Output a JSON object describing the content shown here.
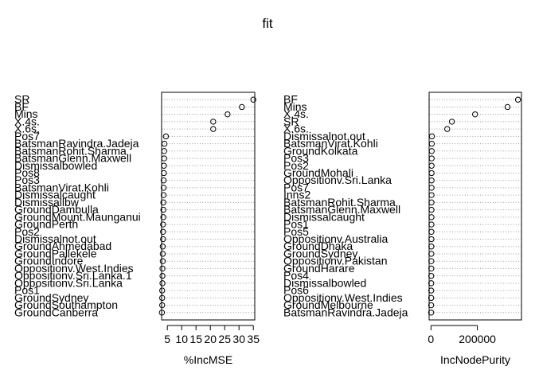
{
  "title": "fit",
  "chart_data": [
    {
      "type": "scatter",
      "xlabel": "%IncMSE",
      "xlim": [
        3,
        35.5
      ],
      "xticks": [
        5,
        10,
        15,
        20,
        25,
        30,
        35
      ],
      "grid": "dotted horizontal guide per category",
      "categories": [
        "SR",
        "BF",
        "Mins",
        "X.4s.",
        "X.6s.",
        "Pos7",
        "BatsmanRavindra.Jadeja",
        "BatsmanRohit.Sharma",
        "BatsmanGlenn.Maxwell",
        "Dismissalbowled",
        "Pos8",
        "Pos3",
        "BatsmanVirat.Kohli",
        "Dismissalcaught",
        "Dismissallbw",
        "GroundDambulla",
        "GroundMount.Maunganui",
        "GroundPerth",
        "Pos2",
        "Dismissalnot.out",
        "GroundAhmedabad",
        "GroundPallekele",
        "GroundIndore",
        "Oppositionv.West.Indies",
        "Oppositionv.Sri.Lanka.1",
        "Oppositionv.Sri.Lanka",
        "Pos1",
        "GroundSydney",
        "GroundSouthampton",
        "GroundCanberra"
      ],
      "values": [
        35,
        31,
        26,
        21,
        21,
        4.5,
        4,
        3.9,
        3.9,
        3.8,
        3.8,
        3.7,
        3.7,
        3.7,
        3.6,
        3.6,
        3.6,
        3.5,
        3.5,
        3.5,
        3.4,
        3.4,
        3.4,
        3.3,
        3.3,
        3.3,
        3.2,
        3.2,
        3.2,
        3.1
      ]
    },
    {
      "type": "scatter",
      "xlabel": "IncNodePurity",
      "xlim": [
        -8000,
        390000
      ],
      "xticks": [
        0,
        200000
      ],
      "grid": "dotted horizontal guide per category",
      "categories": [
        "BF",
        "Mins",
        "X.4s.",
        "SR",
        "X.6s.",
        "Dismissalnot.out",
        "BatsmanVirat.Kohli",
        "GroundKolkata",
        "Pos3",
        "Pos2",
        "GroundMohali",
        "Oppositionv.Sri.Lanka",
        "Pos7",
        "Inns2",
        "BatsmanRohit.Sharma",
        "BatsmanGlenn.Maxwell",
        "Dismissalcaught",
        "Pos1",
        "Pos5",
        "Oppositionv.Australia",
        "GroundDhaka",
        "GroundSydney",
        "Oppositionv.Pakistan",
        "GroundHarare",
        "Pos4",
        "Dismissalbowled",
        "Pos6",
        "Oppositionv.West.Indies",
        "GroundMelbourne",
        "BatsmanRavindra.Jadeja"
      ],
      "values": [
        375000,
        330000,
        190000,
        90000,
        70000,
        4000,
        3500,
        3200,
        3000,
        2800,
        2700,
        2600,
        2500,
        2400,
        2300,
        2200,
        2100,
        2000,
        1900,
        1800,
        1700,
        1600,
        1500,
        1400,
        1300,
        1200,
        1100,
        1000,
        900,
        800
      ]
    }
  ]
}
